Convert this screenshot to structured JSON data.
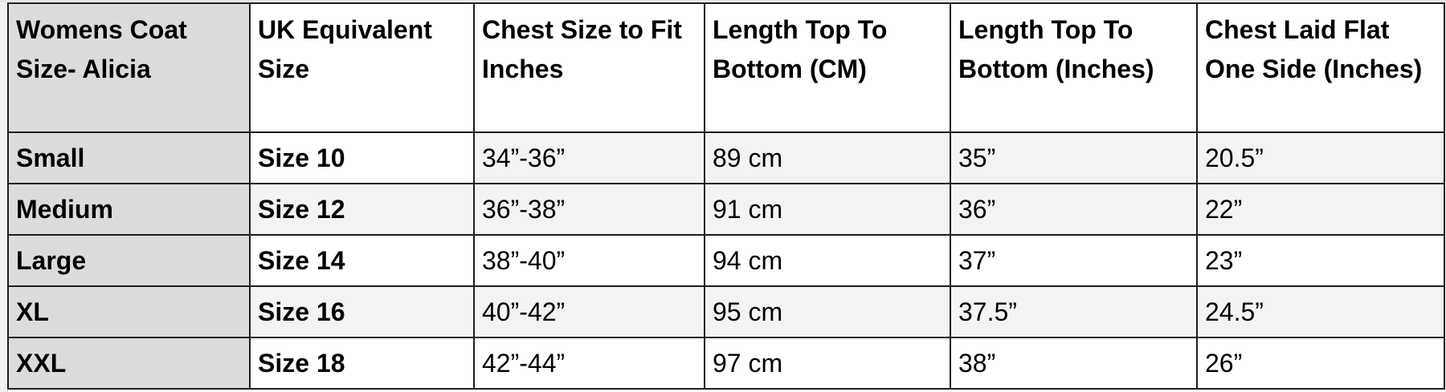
{
  "table": {
    "headers": [
      "Womens Coat Size- Alicia",
      "UK Equivalent Size",
      "Chest Size to Fit Inches",
      "Length Top To Bottom (CM)",
      "Length Top To Bottom (Inches)",
      "Chest Laid Flat One Side (Inches)"
    ],
    "rows": [
      [
        "Small",
        "Size 10",
        "34”-36”",
        "89 cm",
        "35”",
        "20.5”"
      ],
      [
        "Medium",
        "Size 12",
        "36”-38”",
        "91 cm",
        "36”",
        "22”"
      ],
      [
        "Large",
        "Size 14",
        "38”-40”",
        "94 cm",
        "37”",
        "23”"
      ],
      [
        "XL",
        "Size 16",
        "40”-42”",
        "95 cm",
        "37.5”",
        "24.5”"
      ],
      [
        "XXL",
        "Size 18",
        "42”-44”",
        "97 cm",
        "38”",
        "26”"
      ]
    ]
  },
  "colors": {
    "first_column": "#dcdcdc",
    "alt_row": "#f3f3f3",
    "border": "#1e1e1e"
  }
}
